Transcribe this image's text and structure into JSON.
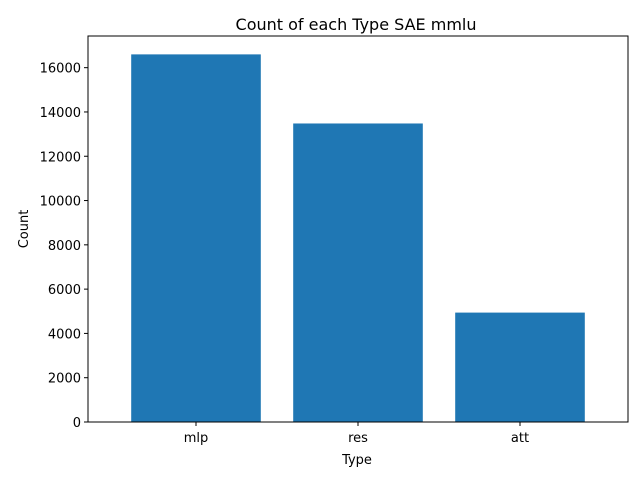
{
  "chart_data": {
    "type": "bar",
    "title": "Count of each Type SAE mmlu",
    "xlabel": "Type",
    "ylabel": "Count",
    "categories": [
      "mlp",
      "res",
      "att"
    ],
    "values": [
      16600,
      13480,
      4940
    ],
    "ylim": [
      0,
      17430
    ],
    "yticks": [
      0,
      2000,
      4000,
      6000,
      8000,
      10000,
      12000,
      14000,
      16000
    ],
    "grid": false,
    "bar_color": "#1f77b4"
  }
}
